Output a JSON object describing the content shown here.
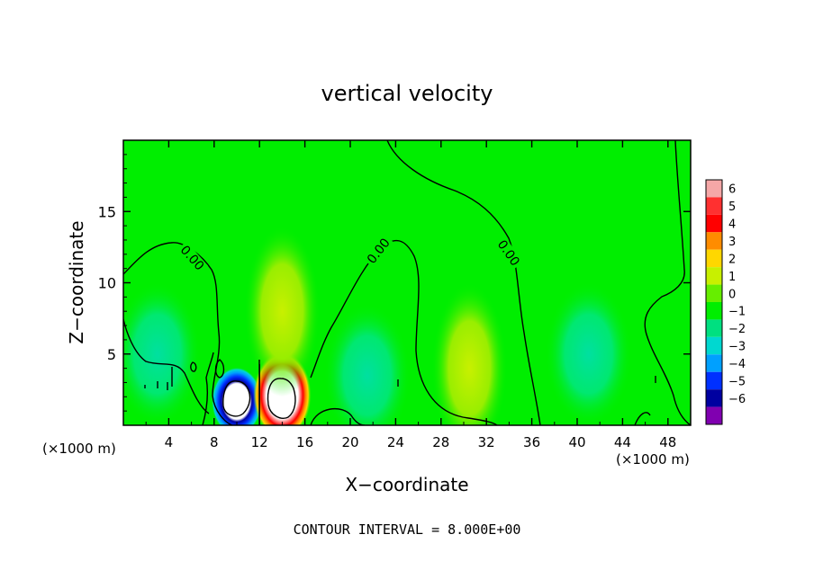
{
  "chart_data": {
    "type": "heatmap",
    "title": "vertical velocity",
    "xlabel": "X−coordinate",
    "ylabel": "Z−coordinate",
    "x_unit_left": "(×1000 m)",
    "x_unit_right": "(×1000 m)",
    "footer": "CONTOUR INTERVAL = 8.000E+00",
    "xlim": [
      0,
      50
    ],
    "ylim": [
      0,
      20
    ],
    "x_ticks": [
      4,
      8,
      12,
      16,
      20,
      24,
      28,
      32,
      36,
      40,
      44,
      48
    ],
    "y_ticks": [
      5,
      10,
      15
    ],
    "contour_labels": [
      "0.00",
      "0.00",
      "0.00"
    ],
    "colorbar": {
      "levels": [
        "6",
        "5",
        "4",
        "3",
        "2",
        "1",
        "0",
        "−1",
        "−2",
        "−3",
        "−4",
        "−5",
        "−6"
      ],
      "colors": [
        "#f5a7a7",
        "#ff3030",
        "#ff0000",
        "#ff8c00",
        "#ffd700",
        "#c8f000",
        "#66ee00",
        "#00ee00",
        "#00e080",
        "#00d8d0",
        "#00a0ff",
        "#0030ff",
        "#0000a0",
        "#8000b0"
      ]
    },
    "features": [
      {
        "kind": "downdraft",
        "x": 10,
        "z": 2,
        "value": -6
      },
      {
        "kind": "updraft",
        "x": 14,
        "z": 2,
        "value": 6
      },
      {
        "kind": "updraft",
        "x": 14,
        "z": 8,
        "value": 1
      },
      {
        "kind": "updraft",
        "x": 30.5,
        "z": 4,
        "value": 1
      },
      {
        "kind": "downdraft",
        "x": 21.5,
        "z": 3.5,
        "value": -1
      },
      {
        "kind": "downdraft",
        "x": 41,
        "z": 5,
        "value": -1
      },
      {
        "kind": "downdraft",
        "x": 3,
        "z": 5,
        "value": -1
      }
    ]
  }
}
